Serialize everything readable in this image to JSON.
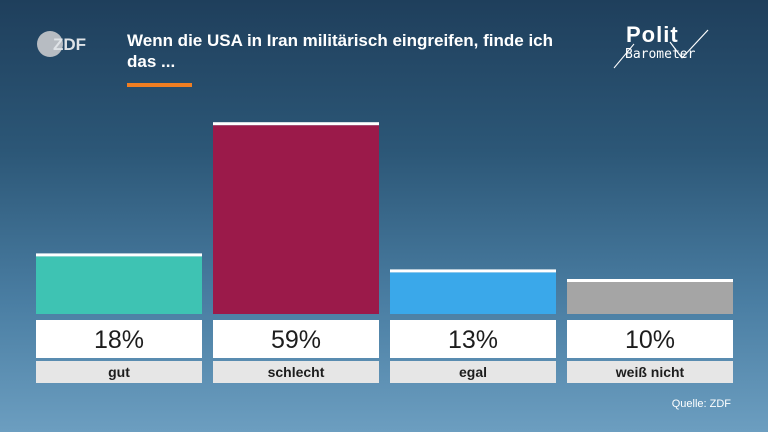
{
  "header": {
    "brand_logo": "ZDF",
    "title": "Wenn die USA in Iran militärisch eingreifen, finde ich das ...",
    "program_logo_top": "Polit",
    "program_logo_bottom": "Barometer"
  },
  "source": "Quelle: ZDF",
  "colors": {
    "accent": "#f07e22",
    "gut": "#3ec3b3",
    "schlecht": "#9b1a4a",
    "egal": "#3aa8ea",
    "weiss_nicht": "#a5a5a5"
  },
  "chart_data": {
    "type": "bar",
    "title": "Wenn die USA in Iran militärisch eingreifen, finde ich das ...",
    "categories": [
      "gut",
      "schlecht",
      "egal",
      "weiß nicht"
    ],
    "values": [
      18,
      59,
      13,
      10
    ],
    "value_labels": [
      "18%",
      "59%",
      "13%",
      "10%"
    ],
    "unit": "%",
    "bar_colors": [
      "#3ec3b3",
      "#9b1a4a",
      "#3aa8ea",
      "#a5a5a5"
    ],
    "ylim": [
      0,
      100
    ],
    "grid": false,
    "legend": "none"
  }
}
